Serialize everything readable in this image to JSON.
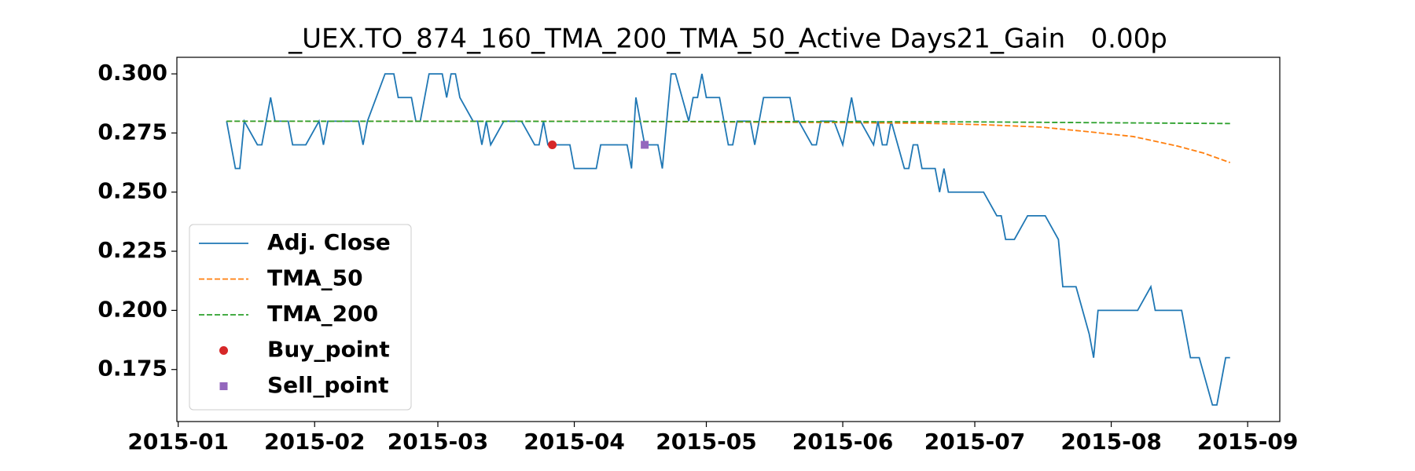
{
  "chart_data": {
    "type": "line",
    "title": "_UEX.TO_874_160_TMA_200_TMA_50_Active Days21_Gain   0.00p",
    "xlim": [
      -0.3,
      250.3
    ],
    "xticks": [
      {
        "value": 0,
        "label": "2015-01"
      },
      {
        "value": 31,
        "label": "2015-02"
      },
      {
        "value": 59,
        "label": "2015-03"
      },
      {
        "value": 90,
        "label": "2015-04"
      },
      {
        "value": 120,
        "label": "2015-05"
      },
      {
        "value": 151,
        "label": "2015-06"
      },
      {
        "value": 181,
        "label": "2015-07"
      },
      {
        "value": 212,
        "label": "2015-08"
      },
      {
        "value": 243,
        "label": "2015-09"
      }
    ],
    "ylim": [
      0.153,
      0.307
    ],
    "yticks": [
      0.175,
      {
        "value": 0.2,
        "label": "0.200"
      },
      0.225,
      {
        "value": 0.25,
        "label": "0.250"
      },
      0.275,
      {
        "value": 0.3,
        "label": "0.300"
      }
    ],
    "grid": false,
    "legend": "lower left",
    "series": [
      {
        "name": "Adj. Close",
        "kind": "line",
        "style": "solid",
        "color": "#1f77b4",
        "x": [
          11,
          13,
          14,
          15,
          18,
          19,
          21,
          22,
          25,
          26,
          29,
          32,
          33,
          34,
          41,
          42,
          43,
          47,
          49,
          50,
          53,
          54,
          55,
          57,
          60,
          61,
          62,
          63,
          64,
          67,
          68,
          69,
          70,
          71,
          74,
          78,
          81,
          82,
          83,
          84,
          89,
          90,
          95,
          96,
          102,
          103,
          104,
          106,
          109,
          110,
          112,
          113,
          116,
          117,
          118,
          119,
          120,
          123,
          125,
          126,
          127,
          130,
          131,
          133,
          139,
          140,
          141,
          144,
          145,
          146,
          149,
          151,
          153,
          154,
          155,
          158,
          159,
          160,
          161,
          162,
          165,
          166,
          167,
          168,
          169,
          172,
          173,
          174,
          175,
          183,
          186,
          187,
          188,
          190,
          193,
          197,
          200,
          201,
          204,
          207,
          208,
          209,
          218,
          221,
          222,
          228,
          230,
          232,
          235,
          236,
          238,
          239
        ],
        "values": [
          0.28,
          0.26,
          0.26,
          0.28,
          0.27,
          0.27,
          0.29,
          0.28,
          0.28,
          0.27,
          0.27,
          0.28,
          0.27,
          0.28,
          0.28,
          0.27,
          0.28,
          0.3,
          0.3,
          0.29,
          0.29,
          0.28,
          0.28,
          0.3,
          0.3,
          0.29,
          0.3,
          0.3,
          0.29,
          0.28,
          0.28,
          0.27,
          0.28,
          0.27,
          0.28,
          0.28,
          0.27,
          0.27,
          0.28,
          0.27,
          0.27,
          0.26,
          0.26,
          0.27,
          0.27,
          0.26,
          0.29,
          0.27,
          0.27,
          0.26,
          0.3,
          0.3,
          0.28,
          0.29,
          0.29,
          0.3,
          0.29,
          0.29,
          0.27,
          0.27,
          0.28,
          0.28,
          0.27,
          0.29,
          0.29,
          0.28,
          0.28,
          0.27,
          0.27,
          0.28,
          0.28,
          0.27,
          0.29,
          0.28,
          0.28,
          0.27,
          0.28,
          0.27,
          0.27,
          0.28,
          0.26,
          0.26,
          0.27,
          0.27,
          0.26,
          0.26,
          0.25,
          0.26,
          0.25,
          0.25,
          0.24,
          0.24,
          0.23,
          0.23,
          0.24,
          0.24,
          0.23,
          0.21,
          0.21,
          0.19,
          0.18,
          0.2,
          0.2,
          0.21,
          0.2,
          0.2,
          0.18,
          0.18,
          0.16,
          0.16,
          0.18,
          0.18
        ]
      },
      {
        "name": "TMA_50",
        "kind": "line",
        "style": "dashed",
        "color": "#ff7f0e",
        "x": [
          11,
          50,
          100,
          150,
          170,
          183,
          196,
          207,
          217,
          227,
          233,
          239
        ],
        "values": [
          0.28,
          0.28,
          0.2799,
          0.2794,
          0.2791,
          0.2785,
          0.2775,
          0.2755,
          0.2735,
          0.2695,
          0.2665,
          0.2625
        ]
      },
      {
        "name": "TMA_200",
        "kind": "line",
        "style": "dashed",
        "color": "#2ca02c",
        "x": [
          11,
          100,
          180,
          239
        ],
        "values": [
          0.28,
          0.2799,
          0.2797,
          0.279
        ]
      },
      {
        "name": "Buy_point",
        "kind": "scatter",
        "marker": "circle",
        "color": "#d62728",
        "x": [
          85
        ],
        "values": [
          0.27
        ]
      },
      {
        "name": "Sell_point",
        "kind": "scatter",
        "marker": "square",
        "color": "#9467bd",
        "x": [
          106
        ],
        "values": [
          0.27
        ]
      }
    ]
  }
}
